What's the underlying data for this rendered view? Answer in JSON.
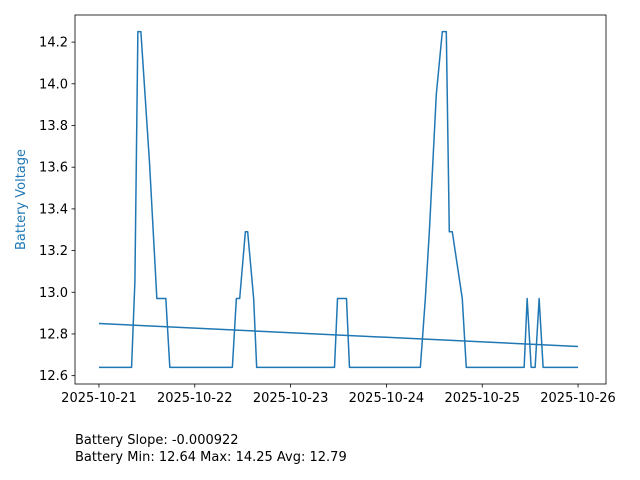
{
  "chart_data": {
    "type": "line",
    "title": "",
    "xlabel": "",
    "ylabel": "Battery Voltage",
    "ylabel_color": "#1f77b4",
    "line_color": "#1f77b4",
    "grid": false,
    "legend": "none",
    "x_start": "2025-10-21",
    "xlim": [
      "2025-10-20 18:00",
      "2025-10-26 07:00"
    ],
    "ylim": [
      12.56,
      14.33
    ],
    "x_ticks": [
      "2025-10-21",
      "2025-10-22",
      "2025-10-23",
      "2025-10-24",
      "2025-10-25",
      "2025-10-26"
    ],
    "y_ticks": [
      12.6,
      12.8,
      13.0,
      13.2,
      13.4,
      13.6,
      13.8,
      14.0,
      14.2
    ],
    "y_tick_labels": [
      "12.6",
      "12.8",
      "13.0",
      "13.2",
      "13.4",
      "13.6",
      "13.8",
      "14.0",
      "14.2"
    ],
    "series": [
      {
        "name": "",
        "x": [
          "2025-10-21 00:00",
          "2025-10-21 08:10",
          "2025-10-21 09:00",
          "2025-10-21 09:45",
          "2025-10-21 10:30",
          "2025-10-21 12:40",
          "2025-10-21 14:30",
          "2025-10-21 15:30",
          "2025-10-21 16:45",
          "2025-10-21 17:45",
          "2025-10-22 09:25",
          "2025-10-22 10:25",
          "2025-10-22 11:15",
          "2025-10-22 12:40",
          "2025-10-22 13:15",
          "2025-10-22 14:45",
          "2025-10-22 15:30",
          "2025-10-23 11:00",
          "2025-10-23 11:45",
          "2025-10-23 14:00",
          "2025-10-23 14:45",
          "2025-10-24 08:30",
          "2025-10-24 09:45",
          "2025-10-24 10:45",
          "2025-10-24 12:30",
          "2025-10-24 14:00",
          "2025-10-24 15:00",
          "2025-10-24 15:45",
          "2025-10-24 16:30",
          "2025-10-24 19:00",
          "2025-10-24 20:00",
          "2025-10-25 10:30",
          "2025-10-25 11:15",
          "2025-10-25 12:15",
          "2025-10-25 13:15",
          "2025-10-25 14:15",
          "2025-10-25 15:15",
          "2025-10-25 24:00"
        ],
        "y": [
          12.64,
          12.64,
          13.05,
          14.25,
          14.25,
          13.62,
          12.97,
          12.97,
          12.97,
          12.64,
          12.64,
          12.97,
          12.97,
          13.29,
          13.29,
          12.97,
          12.64,
          12.64,
          12.97,
          12.97,
          12.64,
          12.64,
          12.97,
          13.29,
          13.95,
          14.25,
          14.25,
          13.29,
          13.29,
          12.97,
          12.64,
          12.64,
          12.97,
          12.64,
          12.64,
          12.97,
          12.64,
          12.64
        ]
      },
      {
        "name": "",
        "x": [
          "2025-10-21 00:00",
          "2025-10-25 24:00"
        ],
        "y": [
          12.85,
          12.74
        ]
      }
    ]
  },
  "stats": {
    "slope_line": "Battery Slope: -0.000922",
    "minmax_line": "Battery Min: 12.64 Max: 14.25 Avg: 12.79"
  }
}
